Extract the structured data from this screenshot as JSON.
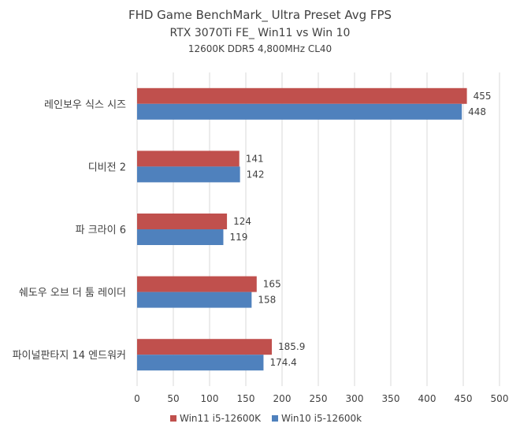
{
  "chart_data": {
    "type": "bar",
    "orientation": "horizontal",
    "title": "FHD Game BenchMark_ Ultra Preset Avg FPS",
    "subtitle": "RTX 3070Ti FE_ Win11 vs Win 10",
    "subtitle2": "12600K DDR5 4,800MHz CL40",
    "categories": [
      "레인보우 식스 시즈",
      "디비전 2",
      "파 크라이 6",
      "쉐도우 오브 더 툼 레이더",
      "파이널판타지 14 엔드워커"
    ],
    "series": [
      {
        "name": "Win11 i5-12600K",
        "color": "#c0504d",
        "values": [
          455,
          141,
          124,
          165,
          185.9
        ]
      },
      {
        "name": "Win10 i5-12600k",
        "color": "#4f81bd",
        "values": [
          448,
          142,
          119,
          158,
          174.4
        ]
      }
    ],
    "xlim": [
      0,
      500
    ],
    "xticks": [
      0,
      50,
      100,
      150,
      200,
      250,
      300,
      350,
      400,
      450,
      500
    ],
    "grid": true,
    "legend_position": "bottom"
  }
}
